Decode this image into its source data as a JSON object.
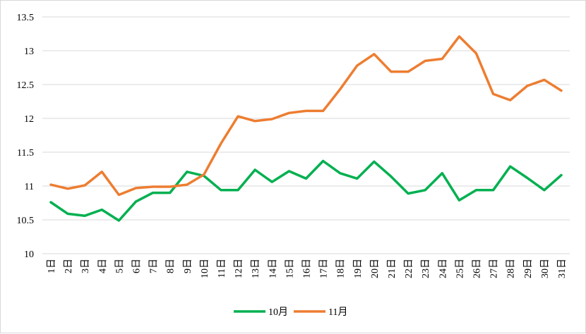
{
  "chart_data": {
    "type": "line",
    "title": "",
    "xlabel": "",
    "ylabel": "",
    "ylim": [
      10,
      13.5
    ],
    "yticks": [
      "10",
      "10.5",
      "11",
      "11.5",
      "12",
      "12.5",
      "13",
      "13.5"
    ],
    "ytick_values": [
      10,
      10.5,
      11,
      11.5,
      12,
      12.5,
      13,
      13.5
    ],
    "grid": true,
    "legend": "bottom-center",
    "categories": [
      "1日",
      "2日",
      "3日",
      "4日",
      "5日",
      "6日",
      "7日",
      "8日",
      "9日",
      "10日",
      "11日",
      "12日",
      "13日",
      "14日",
      "15日",
      "16日",
      "17日",
      "18日",
      "19日",
      "20日",
      "21日",
      "22日",
      "23日",
      "24日",
      "25日",
      "26日",
      "27日",
      "28日",
      "29日",
      "30日",
      "31日"
    ],
    "series": [
      {
        "name": "10月",
        "color": "#00b050",
        "values": [
          10.76,
          10.59,
          10.56,
          10.65,
          10.49,
          10.77,
          10.9,
          10.9,
          11.21,
          11.15,
          10.94,
          10.94,
          11.24,
          11.06,
          11.22,
          11.11,
          11.37,
          11.19,
          11.11,
          11.36,
          11.14,
          10.89,
          10.94,
          11.19,
          10.79,
          10.94,
          10.94,
          11.29,
          11.12,
          10.94,
          11.16
        ]
      },
      {
        "name": "11月",
        "color": "#ed7d31",
        "values": [
          11.02,
          10.96,
          11.01,
          11.21,
          10.87,
          10.97,
          10.99,
          10.99,
          11.02,
          11.17,
          11.63,
          12.03,
          11.96,
          11.99,
          12.08,
          12.11,
          12.11,
          12.43,
          12.78,
          12.95,
          12.69,
          12.69,
          12.85,
          12.88,
          13.21,
          12.96,
          12.36,
          12.27,
          12.48,
          12.57,
          12.41
        ]
      }
    ]
  }
}
